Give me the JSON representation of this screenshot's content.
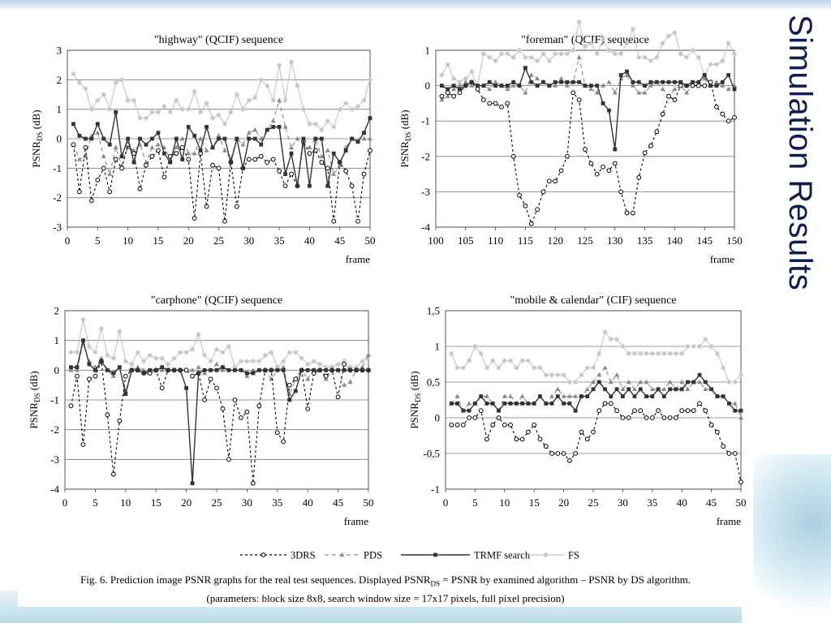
{
  "slide": {
    "title": "Simulation Results",
    "caption_line1": "Fig. 6. Prediction image PSNR graphs for the real test sequences. Displayed PSNRDS = PSNR by examined algorithm – PSNR by DS algorithm.",
    "caption_line2": "(parameters: block size 8x8, search window size = 17x17 pixels, full pixel precision)"
  },
  "legend": [
    {
      "name": "3DRS",
      "color": "#000000",
      "dash": "3 3",
      "marker": "circle"
    },
    {
      "name": "PDS",
      "color": "#8a8a8a",
      "dash": "5 4",
      "marker": "triangle"
    },
    {
      "name": "TRMF search",
      "color": "#333333",
      "dash": "",
      "marker": "square"
    },
    {
      "name": "FS",
      "color": "#c4c4c4",
      "dash": "",
      "marker": "star"
    }
  ],
  "chart_data": [
    {
      "type": "line",
      "title": "\"highway\" (QCIF) sequence",
      "ylabel": "PSNR",
      "ylabel_sub": "DS",
      "ylabel_unit": " (dB)",
      "xlabel": "frame",
      "xlim": [
        0,
        50
      ],
      "ylim": [
        -3,
        3
      ],
      "xticks": [
        0,
        5,
        10,
        15,
        20,
        25,
        30,
        35,
        40,
        45,
        50
      ],
      "yticks": [
        -3,
        -2,
        -1,
        0,
        1,
        2,
        3
      ],
      "ytick_labels": [
        "-3",
        "-2",
        "-1",
        "0",
        "1",
        "2",
        "3"
      ],
      "x_start": 1,
      "series": [
        {
          "name": "3DRS",
          "values": [
            -0.2,
            -1.8,
            -0.3,
            -2.1,
            -1.4,
            -1.0,
            -1.8,
            -0.7,
            -1.0,
            -0.2,
            -0.5,
            -1.7,
            -0.9,
            -0.6,
            -0.4,
            -1.3,
            -0.6,
            -0.5,
            -0.3,
            -0.7,
            -2.7,
            -0.5,
            -2.3,
            -0.9,
            -1.0,
            -2.8,
            -0.8,
            -2.3,
            -1.0,
            -0.7,
            -0.7,
            -0.6,
            -0.8,
            -0.7,
            -1.1,
            -1.6,
            -1.2,
            -1.6,
            -0.1,
            -0.5,
            -0.4,
            -0.8,
            -1.0,
            -2.8,
            -0.8,
            -1.1,
            -1.6,
            -2.8,
            -1.2,
            -0.4
          ]
        },
        {
          "name": "PDS",
          "values": [
            -0.2,
            -0.7,
            -0.6,
            0.1,
            0.2,
            -0.6,
            -1.2,
            -0.3,
            -0.9,
            -0.3,
            -0.4,
            -0.2,
            -0.8,
            -0.3,
            -0.2,
            -0.3,
            -0.7,
            -0.3,
            0.0,
            -0.5,
            -0.5,
            0.0,
            -0.4,
            -0.3,
            0.1,
            -0.4,
            -0.7,
            0.0,
            -0.2,
            0.2,
            0.3,
            0.0,
            0.3,
            0.6,
            1.3,
            0.4,
            -0.3,
            0.0,
            -0.2,
            -0.3,
            0.0,
            -0.6,
            -0.4,
            -1.2,
            -0.9,
            -0.3,
            0.0,
            -0.1,
            0.0,
            0.0
          ]
        },
        {
          "name": "TRMF search",
          "values": [
            0.5,
            0.1,
            0.0,
            0.0,
            0.5,
            0.0,
            -0.2,
            0.9,
            -0.6,
            0.0,
            -0.8,
            0.0,
            -0.2,
            0.0,
            0.2,
            -0.5,
            -0.8,
            0.0,
            -0.7,
            0.4,
            0.1,
            -0.4,
            0.4,
            -0.3,
            0.0,
            0.0,
            -0.8,
            0.0,
            -1.0,
            0.0,
            0.0,
            -0.2,
            0.3,
            0.4,
            0.4,
            -1.2,
            -0.5,
            -1.6,
            0.0,
            -1.6,
            0.0,
            0.0,
            -1.6,
            -0.5,
            -0.8,
            -0.4,
            0.0,
            -0.1,
            0.2,
            0.7
          ]
        },
        {
          "name": "FS",
          "values": [
            2.2,
            1.9,
            1.7,
            1.0,
            1.3,
            1.5,
            1.0,
            1.9,
            2.0,
            1.3,
            1.3,
            0.7,
            0.7,
            0.9,
            0.9,
            1.1,
            0.9,
            1.3,
            1.0,
            1.0,
            1.6,
            0.9,
            1.2,
            0.7,
            0.8,
            0.5,
            0.9,
            1.5,
            1.0,
            1.3,
            1.4,
            2.0,
            1.8,
            1.3,
            2.5,
            1.3,
            2.6,
            1.8,
            1.0,
            0.5,
            0.5,
            0.3,
            0.6,
            0.4,
            1.0,
            1.2,
            1.0,
            1.1,
            1.3,
            2.0
          ]
        }
      ]
    },
    {
      "type": "line",
      "title": "\"foreman\" (QCIF) sequence",
      "ylabel": "PSNR",
      "ylabel_sub": "DS",
      "ylabel_unit": " (dB)",
      "xlabel": "frame",
      "xlim": [
        100,
        150
      ],
      "ylim": [
        -4,
        1
      ],
      "xticks": [
        100,
        105,
        110,
        115,
        120,
        125,
        130,
        135,
        140,
        145,
        150
      ],
      "yticks": [
        -4,
        -3,
        -2,
        -1,
        0,
        1
      ],
      "ytick_labels": [
        "-4",
        "-3",
        "-2",
        "-1",
        "0",
        "1"
      ],
      "x_start": 101,
      "series": [
        {
          "name": "3DRS",
          "values": [
            -0.3,
            -0.2,
            -0.3,
            -0.2,
            0.0,
            0.1,
            -0.1,
            -0.4,
            -0.5,
            -0.5,
            -0.6,
            -0.5,
            -2.0,
            -3.1,
            -3.4,
            -3.9,
            -3.5,
            -3.0,
            -2.7,
            -2.7,
            -2.4,
            -2.0,
            -0.2,
            -0.4,
            -1.8,
            -2.2,
            -2.5,
            -2.3,
            -2.4,
            -2.2,
            -3.0,
            -3.6,
            -3.6,
            -2.6,
            -1.9,
            -1.7,
            -1.3,
            -0.8,
            -0.3,
            -0.4,
            0.0,
            0.0,
            0.0,
            0.0,
            0.0,
            0.1,
            -0.6,
            -0.8,
            -1.0,
            -0.9
          ]
        },
        {
          "name": "PDS",
          "values": [
            -0.4,
            -0.3,
            -0.1,
            0.0,
            0.1,
            0.0,
            0.0,
            0.0,
            -0.1,
            0.1,
            0.0,
            -0.1,
            0.0,
            0.0,
            -0.2,
            0.3,
            0.2,
            0.1,
            0.0,
            0.0,
            0.2,
            0.0,
            0.1,
            0.8,
            0.0,
            -0.1,
            -0.2,
            0.0,
            0.1,
            -0.2,
            0.2,
            0.3,
            0.0,
            -0.2,
            -0.2,
            0.0,
            0.1,
            -0.1,
            -0.3,
            -0.1,
            0.0,
            -0.2,
            0.0,
            0.1,
            0.2,
            0.0,
            0.1,
            0.0,
            -0.1,
            0.0
          ]
        },
        {
          "name": "TRMF search",
          "values": [
            0.0,
            -0.1,
            0.0,
            -0.1,
            0.0,
            0.1,
            0.0,
            0.0,
            0.1,
            0.0,
            0.0,
            0.0,
            0.1,
            0.0,
            0.5,
            0.1,
            0.0,
            0.1,
            0.0,
            0.1,
            0.1,
            0.1,
            0.1,
            0.1,
            0.0,
            0.0,
            0.0,
            -0.5,
            -0.7,
            -1.8,
            0.3,
            0.4,
            0.1,
            0.1,
            0.0,
            0.1,
            0.1,
            0.1,
            0.1,
            0.1,
            0.1,
            0.0,
            0.1,
            0.1,
            0.3,
            0.0,
            0.0,
            0.1,
            0.3,
            -0.1
          ]
        },
        {
          "name": "FS",
          "values": [
            0.3,
            0.6,
            0.2,
            0.1,
            0.2,
            0.4,
            0.0,
            0.9,
            0.8,
            0.7,
            0.9,
            0.9,
            0.8,
            1.0,
            0.8,
            0.8,
            0.7,
            0.9,
            0.7,
            0.9,
            0.9,
            0.9,
            1.0,
            1.8,
            1.1,
            1.2,
            0.9,
            1.3,
            1.0,
            0.9,
            0.9,
            1.2,
            1.6,
            0.8,
            0.8,
            0.7,
            0.8,
            1.2,
            1.4,
            1.5,
            0.9,
            0.8,
            1.0,
            0.8,
            0.3,
            0.6,
            0.6,
            0.7,
            1.2,
            0.9
          ]
        }
      ]
    },
    {
      "type": "line",
      "title": "\"carphone\" (QCIF) sequence",
      "ylabel": "PSNR",
      "ylabel_sub": "DS",
      "ylabel_unit": " (dB)",
      "xlabel": "frame",
      "xlim": [
        0,
        50
      ],
      "ylim": [
        -4,
        2
      ],
      "xticks": [
        0,
        5,
        10,
        15,
        20,
        25,
        30,
        35,
        40,
        45,
        50
      ],
      "yticks": [
        -4,
        -3,
        -2,
        -1,
        0,
        1,
        2
      ],
      "ytick_labels": [
        "-4",
        "-3",
        "-2",
        "-1",
        "0",
        "1",
        "2"
      ],
      "x_start": 1,
      "series": [
        {
          "name": "3DRS",
          "values": [
            -1.2,
            -0.2,
            -2.5,
            -0.3,
            -0.2,
            0.3,
            -1.5,
            -3.5,
            -1.7,
            -0.2,
            0.0,
            0.0,
            -0.1,
            -0.1,
            0.0,
            -0.6,
            0.0,
            0.0,
            0.0,
            0.0,
            -0.2,
            -0.1,
            -1.0,
            -0.3,
            -0.6,
            -1.3,
            -3.0,
            -1.0,
            -1.6,
            -1.4,
            -3.8,
            -1.2,
            0.0,
            0.0,
            -2.1,
            -2.4,
            -0.5,
            -0.3,
            0.0,
            -1.3,
            -0.1,
            0.0,
            -0.2,
            0.0,
            -0.9,
            0.2,
            0.0,
            0.0,
            0.0,
            0.0
          ]
        },
        {
          "name": "PDS",
          "values": [
            0.0,
            0.0,
            0.9,
            0.3,
            0.1,
            0.4,
            0.0,
            -0.2,
            0.1,
            -0.7,
            0.0,
            0.1,
            0.0,
            -0.1,
            0.0,
            0.0,
            0.0,
            0.0,
            0.0,
            0.0,
            0.0,
            0.1,
            -0.1,
            0.0,
            0.2,
            0.0,
            0.0,
            0.0,
            0.0,
            -0.2,
            0.0,
            0.0,
            0.0,
            -0.3,
            0.0,
            0.1,
            -0.8,
            -0.3,
            0.0,
            -0.3,
            0.0,
            0.0,
            -0.3,
            0.0,
            0.0,
            -0.5,
            -0.4,
            0.0,
            0.1,
            0.5
          ]
        },
        {
          "name": "TRMF search",
          "values": [
            0.1,
            0.1,
            1.0,
            0.2,
            0.0,
            0.3,
            0.0,
            -0.1,
            0.1,
            -0.8,
            0.0,
            0.0,
            -0.1,
            0.0,
            0.0,
            0.1,
            0.0,
            0.0,
            0.0,
            -0.6,
            -3.8,
            -0.1,
            0.0,
            0.0,
            0.0,
            0.1,
            0.0,
            0.0,
            0.0,
            -0.1,
            -0.1,
            0.0,
            0.0,
            0.0,
            0.0,
            0.0,
            -1.0,
            -0.7,
            0.0,
            0.0,
            0.0,
            0.0,
            0.0,
            0.0,
            0.0,
            0.0,
            0.0,
            0.0,
            0.0,
            0.0
          ]
        },
        {
          "name": "FS",
          "values": [
            0.6,
            0.6,
            1.7,
            0.8,
            0.6,
            1.4,
            0.5,
            0.4,
            1.3,
            0.3,
            0.2,
            0.6,
            0.3,
            0.5,
            0.4,
            0.4,
            0.2,
            0.4,
            0.6,
            0.6,
            0.7,
            1.2,
            0.5,
            0.3,
            0.7,
            0.6,
            0.8,
            0.1,
            0.3,
            0.3,
            0.3,
            0.3,
            0.5,
            0.6,
            0.1,
            0.3,
            0.6,
            0.6,
            0.4,
            0.2,
            0.3,
            0.2,
            0.1,
            0.1,
            0.2,
            0.3,
            0.1,
            0.1,
            0.3,
            0.5
          ]
        }
      ]
    },
    {
      "type": "line",
      "title": "\"mobile & calendar\" (CIF) sequence",
      "ylabel": "PSNR",
      "ylabel_sub": "DS",
      "ylabel_unit": " (dB)",
      "xlabel": "frame",
      "xlim": [
        0,
        50
      ],
      "ylim": [
        -1,
        1.5
      ],
      "xticks": [
        0,
        5,
        10,
        15,
        20,
        25,
        30,
        35,
        40,
        45,
        50
      ],
      "yticks": [
        -1,
        -0.5,
        0,
        0.5,
        1,
        1.5
      ],
      "ytick_labels": [
        "-1",
        "-0,5",
        "0",
        "0,5",
        "1",
        "1,5"
      ],
      "x_start": 1,
      "series": [
        {
          "name": "3DRS",
          "values": [
            -0.1,
            -0.1,
            -0.1,
            0.0,
            0.0,
            0.1,
            -0.3,
            -0.1,
            0.0,
            -0.1,
            -0.1,
            -0.3,
            -0.3,
            -0.2,
            -0.1,
            -0.3,
            -0.4,
            -0.5,
            -0.5,
            -0.5,
            -0.6,
            -0.5,
            -0.2,
            -0.3,
            -0.2,
            0.1,
            0.2,
            0.2,
            0.1,
            0.0,
            0.0,
            0.1,
            0.1,
            0.0,
            0.0,
            0.1,
            0.0,
            0.0,
            0.0,
            0.1,
            0.1,
            0.1,
            0.2,
            0.1,
            -0.1,
            -0.2,
            -0.4,
            -0.5,
            -0.5,
            -0.9
          ]
        },
        {
          "name": "PDS",
          "values": [
            0.2,
            0.3,
            0.1,
            0.2,
            0.2,
            0.3,
            0.3,
            0.2,
            0.1,
            0.3,
            0.3,
            0.2,
            0.3,
            0.2,
            0.2,
            0.3,
            0.2,
            0.3,
            0.4,
            0.3,
            0.3,
            0.3,
            0.3,
            0.4,
            0.5,
            0.6,
            0.7,
            0.5,
            0.6,
            0.4,
            0.5,
            0.4,
            0.5,
            0.5,
            0.4,
            0.4,
            0.4,
            0.5,
            0.4,
            0.5,
            0.4,
            0.5,
            0.5,
            0.4,
            0.4,
            0.3,
            0.3,
            0.2,
            0.2,
            0.0
          ]
        },
        {
          "name": "TRMF search",
          "values": [
            0.2,
            0.2,
            0.1,
            0.1,
            0.2,
            0.3,
            0.2,
            0.2,
            0.1,
            0.2,
            0.2,
            0.2,
            0.2,
            0.2,
            0.2,
            0.3,
            0.2,
            0.2,
            0.3,
            0.2,
            0.2,
            0.1,
            0.3,
            0.3,
            0.4,
            0.5,
            0.4,
            0.3,
            0.4,
            0.3,
            0.4,
            0.3,
            0.4,
            0.3,
            0.3,
            0.4,
            0.3,
            0.4,
            0.4,
            0.4,
            0.5,
            0.5,
            0.6,
            0.5,
            0.4,
            0.3,
            0.3,
            0.2,
            0.1,
            0.1
          ]
        },
        {
          "name": "FS",
          "values": [
            0.9,
            0.7,
            0.7,
            0.8,
            1.0,
            0.9,
            0.7,
            0.8,
            0.7,
            0.8,
            0.8,
            0.7,
            0.8,
            0.8,
            0.7,
            0.7,
            0.6,
            0.6,
            0.6,
            0.6,
            0.5,
            0.5,
            0.6,
            0.7,
            0.7,
            0.9,
            1.2,
            1.1,
            1.1,
            1.0,
            0.9,
            0.9,
            0.9,
            0.9,
            0.9,
            0.9,
            0.9,
            0.9,
            0.9,
            0.9,
            1.0,
            1.0,
            1.0,
            1.1,
            1.0,
            0.9,
            0.7,
            0.5,
            0.5,
            0.6
          ]
        }
      ]
    }
  ]
}
